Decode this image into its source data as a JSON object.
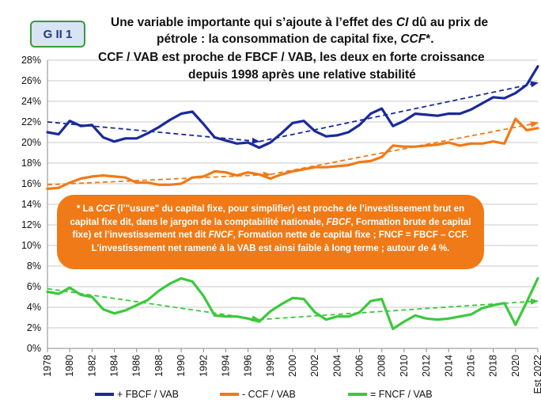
{
  "badge": "G II 1",
  "title": {
    "line1_a": "Une variable importante qui s’ajoute à l’effet des ",
    "line1_b": "CI",
    "line1_c": " dû au prix de",
    "line2_a": "pétrole : la consommation de capital fixe, ",
    "line2_b": "CCF",
    "line2_c": "*.",
    "line3": "CCF / VAB est proche de FBCF / VAB, les deux en forte croissance",
    "line4": "depuis 1998 après une relative stabilité"
  },
  "note": {
    "p1": "* La ",
    "p2": "CCF",
    "p3": " (l’\"usure\" du capital fixe, pour simplifier) est proche de l’investissement brut en capital fixe dit, dans le jargon de la comptabilité nationale, ",
    "p4": "FBCF",
    "p5": ", Formation brute de capital fixe) et l’investissement net dit  ",
    "p6": "FNCF",
    "p7": ", Formation nette de capital fixe ; FNCF = FBCF – CCF.",
    "p8": "L’investissement net  ramené à la VAB est ainsi faible à long terme ; autour de 4 %."
  },
  "colors": {
    "fbcf": "#1a2a9a",
    "ccf": "#f07a17",
    "fncf": "#3cc83c",
    "grid": "#c8c8c8"
  },
  "chart_data": {
    "type": "line",
    "title": "CCF / VAB est proche de FBCF / VAB, les deux en forte croissance depuis 1998 après une relative stabilité",
    "ylim": [
      0,
      28
    ],
    "y_ticks": [
      "0%",
      "2%",
      "4%",
      "6%",
      "8%",
      "10%",
      "12%",
      "14%",
      "16%",
      "18%",
      "20%",
      "22%",
      "24%",
      "26%",
      "28%"
    ],
    "x_tick_labels": [
      "1978",
      "1980",
      "1982",
      "1984",
      "1986",
      "1988",
      "1990",
      "1992",
      "1994",
      "1996",
      "1998",
      "2000",
      "2002",
      "2004",
      "2006",
      "2008",
      "2010",
      "2012",
      "2014",
      "2016",
      "2018",
      "2020",
      "Est 2022"
    ],
    "x": [
      1978,
      1979,
      1980,
      1981,
      1982,
      1983,
      1984,
      1985,
      1986,
      1987,
      1988,
      1989,
      1990,
      1991,
      1992,
      1993,
      1994,
      1995,
      1996,
      1997,
      1998,
      1999,
      2000,
      2001,
      2002,
      2003,
      2004,
      2005,
      2006,
      2007,
      2008,
      2009,
      2010,
      2011,
      2012,
      2013,
      2014,
      2015,
      2016,
      2017,
      2018,
      2019,
      2020,
      2021,
      2022
    ],
    "series": [
      {
        "name": "+ FBCF / VAB",
        "color_key": "fbcf",
        "values": [
          21.0,
          20.8,
          22.1,
          21.6,
          21.7,
          20.5,
          20.1,
          20.4,
          20.4,
          20.9,
          21.5,
          22.2,
          22.8,
          23.0,
          21.8,
          20.5,
          20.2,
          19.9,
          20.0,
          19.5,
          20.0,
          20.9,
          21.9,
          22.1,
          21.1,
          20.6,
          20.7,
          21.0,
          21.7,
          22.8,
          23.3,
          21.6,
          22.1,
          22.8,
          22.7,
          22.6,
          22.8,
          22.8,
          23.2,
          23.8,
          24.4,
          24.3,
          24.8,
          25.6,
          27.4
        ]
      },
      {
        "name": "- CCF / VAB",
        "color_key": "ccf",
        "values": [
          15.5,
          15.6,
          16.1,
          16.5,
          16.7,
          16.8,
          16.7,
          16.6,
          16.1,
          16.1,
          15.9,
          15.9,
          16.0,
          16.6,
          16.7,
          17.2,
          17.1,
          16.8,
          17.1,
          16.9,
          16.5,
          16.9,
          17.2,
          17.4,
          17.6,
          17.6,
          17.7,
          17.8,
          18.1,
          18.2,
          18.6,
          19.7,
          19.6,
          19.6,
          19.7,
          19.8,
          20.0,
          19.7,
          19.9,
          19.9,
          20.1,
          19.9,
          22.3,
          21.2,
          21.4
        ]
      },
      {
        "name": "= FNCF / VAB",
        "color_key": "fncf",
        "values": [
          5.5,
          5.3,
          5.9,
          5.2,
          5.0,
          3.8,
          3.4,
          3.7,
          4.2,
          4.7,
          5.6,
          6.3,
          6.8,
          6.5,
          5.1,
          3.2,
          3.1,
          3.1,
          2.9,
          2.6,
          3.6,
          4.3,
          4.9,
          4.8,
          3.5,
          2.8,
          3.1,
          3.1,
          3.5,
          4.6,
          4.8,
          1.9,
          2.6,
          3.2,
          2.9,
          2.8,
          2.9,
          3.1,
          3.3,
          3.9,
          4.2,
          4.4,
          2.3,
          4.5,
          6.8
        ]
      }
    ],
    "trendlines": [
      {
        "series": "+ FBCF / VAB",
        "color_key": "fbcf",
        "points": [
          [
            1978,
            22.0
          ],
          [
            1997,
            20.1
          ],
          [
            2022,
            25.8
          ]
        ]
      },
      {
        "series": "- CCF / VAB",
        "color_key": "ccf",
        "points": [
          [
            1978,
            15.9
          ],
          [
            1998,
            16.9
          ],
          [
            2022,
            21.9
          ]
        ]
      },
      {
        "series": "= FNCF / VAB",
        "color_key": "fncf",
        "points": [
          [
            1978,
            5.8
          ],
          [
            1997,
            2.8
          ],
          [
            2022,
            4.6
          ]
        ]
      }
    ],
    "legend": [
      "+ FBCF / VAB",
      "- CCF / VAB",
      "= FNCF / VAB"
    ],
    "legend_position": "bottom",
    "grid": true
  }
}
